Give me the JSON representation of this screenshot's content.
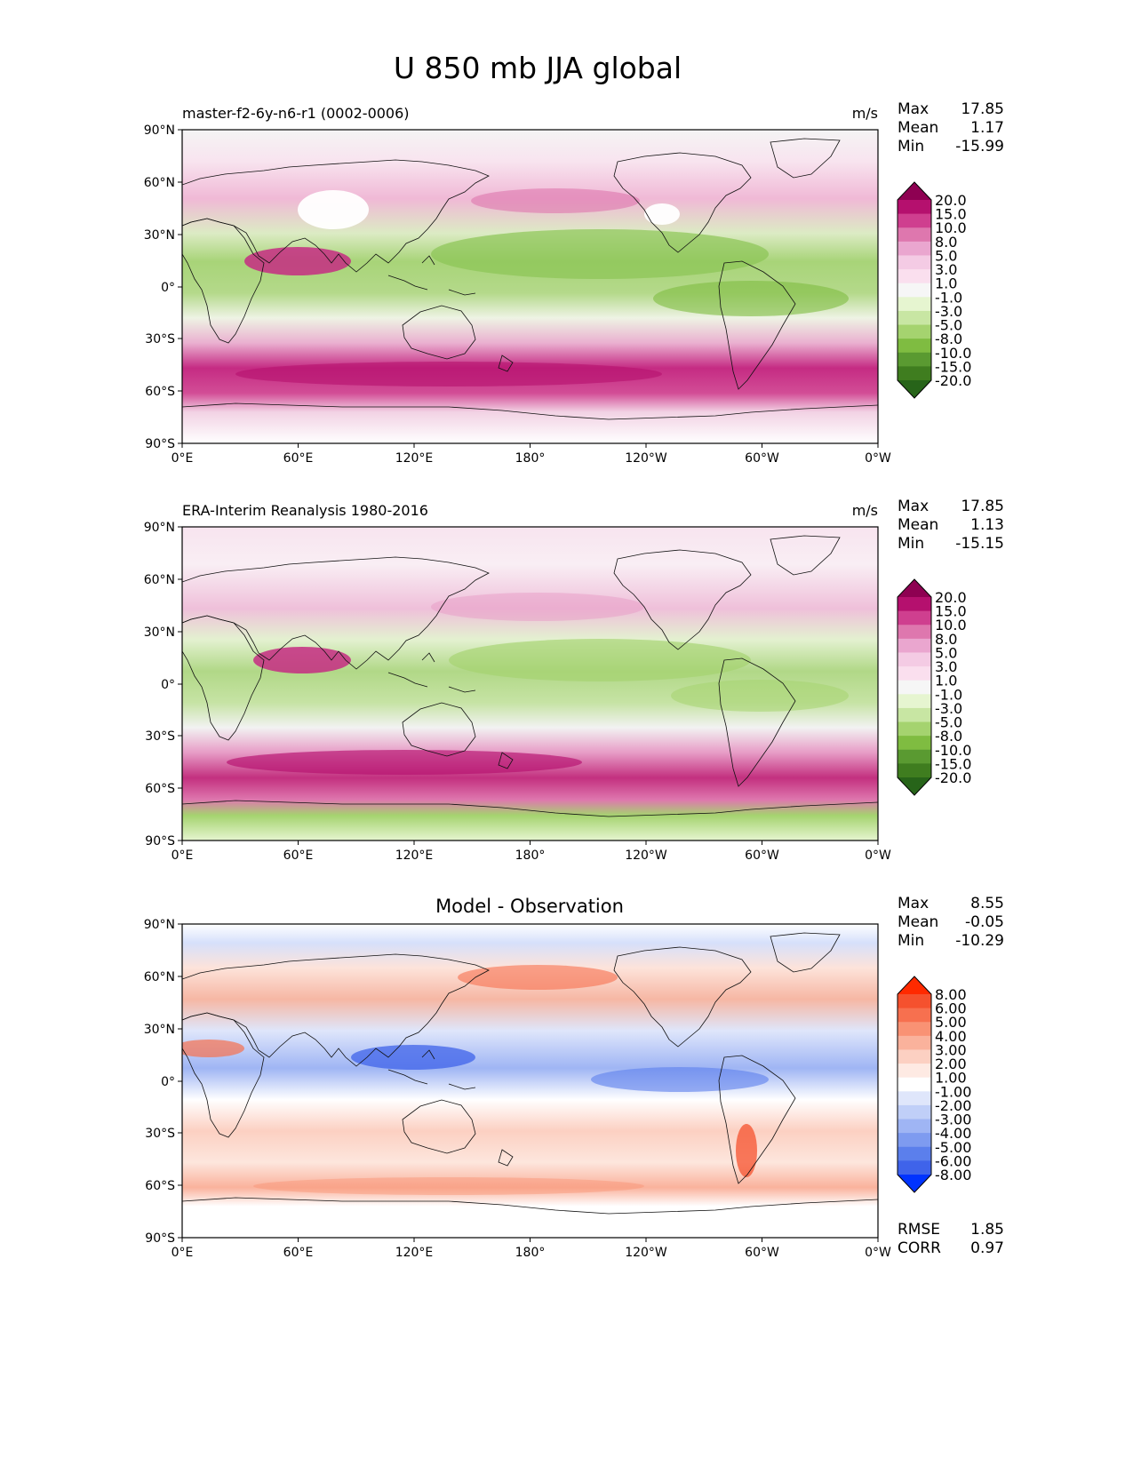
{
  "figure": {
    "title": "U 850 mb JJA global"
  },
  "axes": {
    "lat_ticks": [
      "90°N",
      "60°N",
      "30°N",
      "0°",
      "30°S",
      "60°S",
      "90°S"
    ],
    "lon_ticks": [
      "0°E",
      "60°E",
      "120°E",
      "180°",
      "120°W",
      "60°W",
      "0°W"
    ]
  },
  "panels": [
    {
      "id": "model",
      "left_title": "master-f2-6y-n6-r1 (0002-0006)",
      "center_title": "",
      "units": "m/s",
      "stats": [
        {
          "label": "Max",
          "value": "17.85"
        },
        {
          "label": "Mean",
          "value": "1.17"
        },
        {
          "label": "Min",
          "value": "-15.99"
        }
      ],
      "colorbar": {
        "labels": [
          "20.0",
          "15.0",
          "10.0",
          "8.0",
          "5.0",
          "3.0",
          "1.0",
          "-1.0",
          "-3.0",
          "-5.0",
          "-8.0",
          "-10.0",
          "-15.0",
          "-20.0"
        ],
        "colors": [
          "#8e0152",
          "#b5106e",
          "#cf3f8f",
          "#de77ae",
          "#eaa6cf",
          "#f4cbe4",
          "#fadfee",
          "#f6f6f6",
          "#e6f5d0",
          "#c8e6a3",
          "#a5d36f",
          "#7fbc41",
          "#5a9a31",
          "#3f7d1f",
          "#276419"
        ]
      }
    },
    {
      "id": "obs",
      "left_title": "ERA-Interim Reanalysis 1980-2016",
      "center_title": "",
      "units": "m/s",
      "stats": [
        {
          "label": "Max",
          "value": "17.85"
        },
        {
          "label": "Mean",
          "value": "1.13"
        },
        {
          "label": "Min",
          "value": "-15.15"
        }
      ],
      "colorbar": {
        "labels": [
          "20.0",
          "15.0",
          "10.0",
          "8.0",
          "5.0",
          "3.0",
          "1.0",
          "-1.0",
          "-3.0",
          "-5.0",
          "-8.0",
          "-10.0",
          "-15.0",
          "-20.0"
        ],
        "colors": [
          "#8e0152",
          "#b5106e",
          "#cf3f8f",
          "#de77ae",
          "#eaa6cf",
          "#f4cbe4",
          "#fadfee",
          "#f6f6f6",
          "#e6f5d0",
          "#c8e6a3",
          "#a5d36f",
          "#7fbc41",
          "#5a9a31",
          "#3f7d1f",
          "#276419"
        ]
      }
    },
    {
      "id": "diff",
      "left_title": "",
      "center_title": "Model - Observation",
      "units": "",
      "stats": [
        {
          "label": "Max",
          "value": "8.55"
        },
        {
          "label": "Mean",
          "value": "-0.05"
        },
        {
          "label": "Min",
          "value": "-10.29"
        }
      ],
      "extra_stats": [
        {
          "label": "RMSE",
          "value": "1.85"
        },
        {
          "label": "CORR",
          "value": "0.97"
        }
      ],
      "colorbar": {
        "labels": [
          "8.00",
          "6.00",
          "5.00",
          "4.00",
          "3.00",
          "2.00",
          "1.00",
          "-1.00",
          "-2.00",
          "-3.00",
          "-4.00",
          "-5.00",
          "-6.00",
          "-8.00"
        ],
        "colors": [
          "#ff2a00",
          "#f5512e",
          "#f7704f",
          "#f99274",
          "#fab29c",
          "#fcd0c2",
          "#feeae3",
          "#ffffff",
          "#dfe6fb",
          "#c0cff8",
          "#9fb5f4",
          "#7e9bf0",
          "#5b7fec",
          "#3f63ea",
          "#0033ff"
        ]
      }
    }
  ]
}
